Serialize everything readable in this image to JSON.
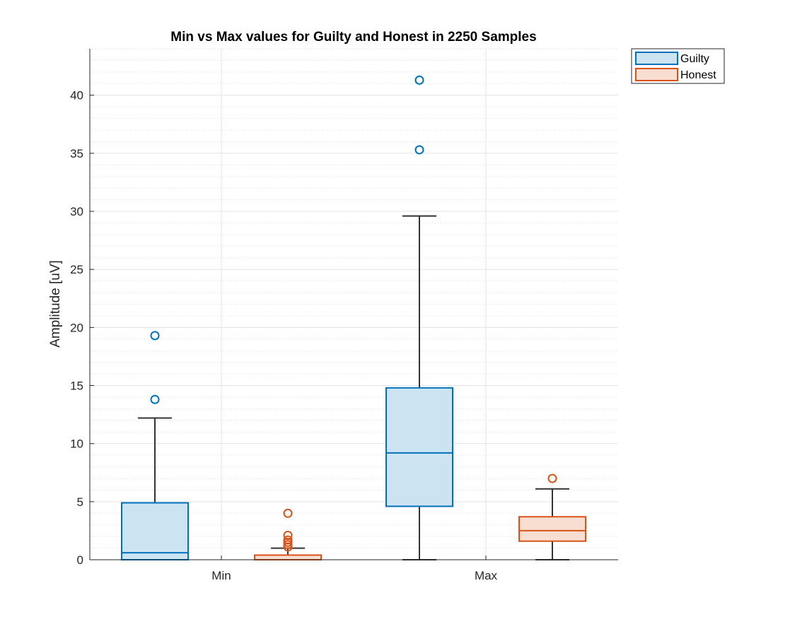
{
  "chart_data": {
    "type": "boxplot",
    "title": "Min vs Max values for Guilty and Honest in 2250 Samples",
    "xlabel": "",
    "ylabel": "Amplitude [uV]",
    "categories": [
      "Min",
      "Max"
    ],
    "ylim": [
      0,
      44
    ],
    "yticks": [
      0,
      5,
      10,
      15,
      20,
      25,
      30,
      35,
      40
    ],
    "ytick_labels": [
      "0",
      "5",
      "10",
      "15",
      "20",
      "25",
      "30",
      "35",
      "40"
    ],
    "grid": "major and minor",
    "legend_position": "outside top-right",
    "series": [
      {
        "name": "Guilty",
        "color": "#0072bd",
        "fill": "#cce3f1",
        "boxes": [
          {
            "category": "Min",
            "whisker_low": 0,
            "q1": 0,
            "median": 0.6,
            "q3": 4.9,
            "whisker_high": 12.2,
            "outliers": [
              13.8,
              19.3
            ]
          },
          {
            "category": "Max",
            "whisker_low": 0,
            "q1": 4.6,
            "median": 9.2,
            "q3": 14.8,
            "whisker_high": 29.6,
            "outliers": [
              35.3,
              41.3
            ]
          }
        ]
      },
      {
        "name": "Honest",
        "color": "#d95319",
        "fill": "#f8ddd1",
        "boxes": [
          {
            "category": "Min",
            "whisker_low": 0,
            "q1": 0,
            "median": 0,
            "q3": 0.4,
            "whisker_high": 1.0,
            "outliers": [
              1.1,
              1.3,
              1.5,
              1.7,
              2.1,
              4.0
            ]
          },
          {
            "category": "Max",
            "whisker_low": 0,
            "q1": 1.6,
            "median": 2.5,
            "q3": 3.7,
            "whisker_high": 6.1,
            "outliers": [
              7.0
            ]
          }
        ]
      }
    ]
  }
}
